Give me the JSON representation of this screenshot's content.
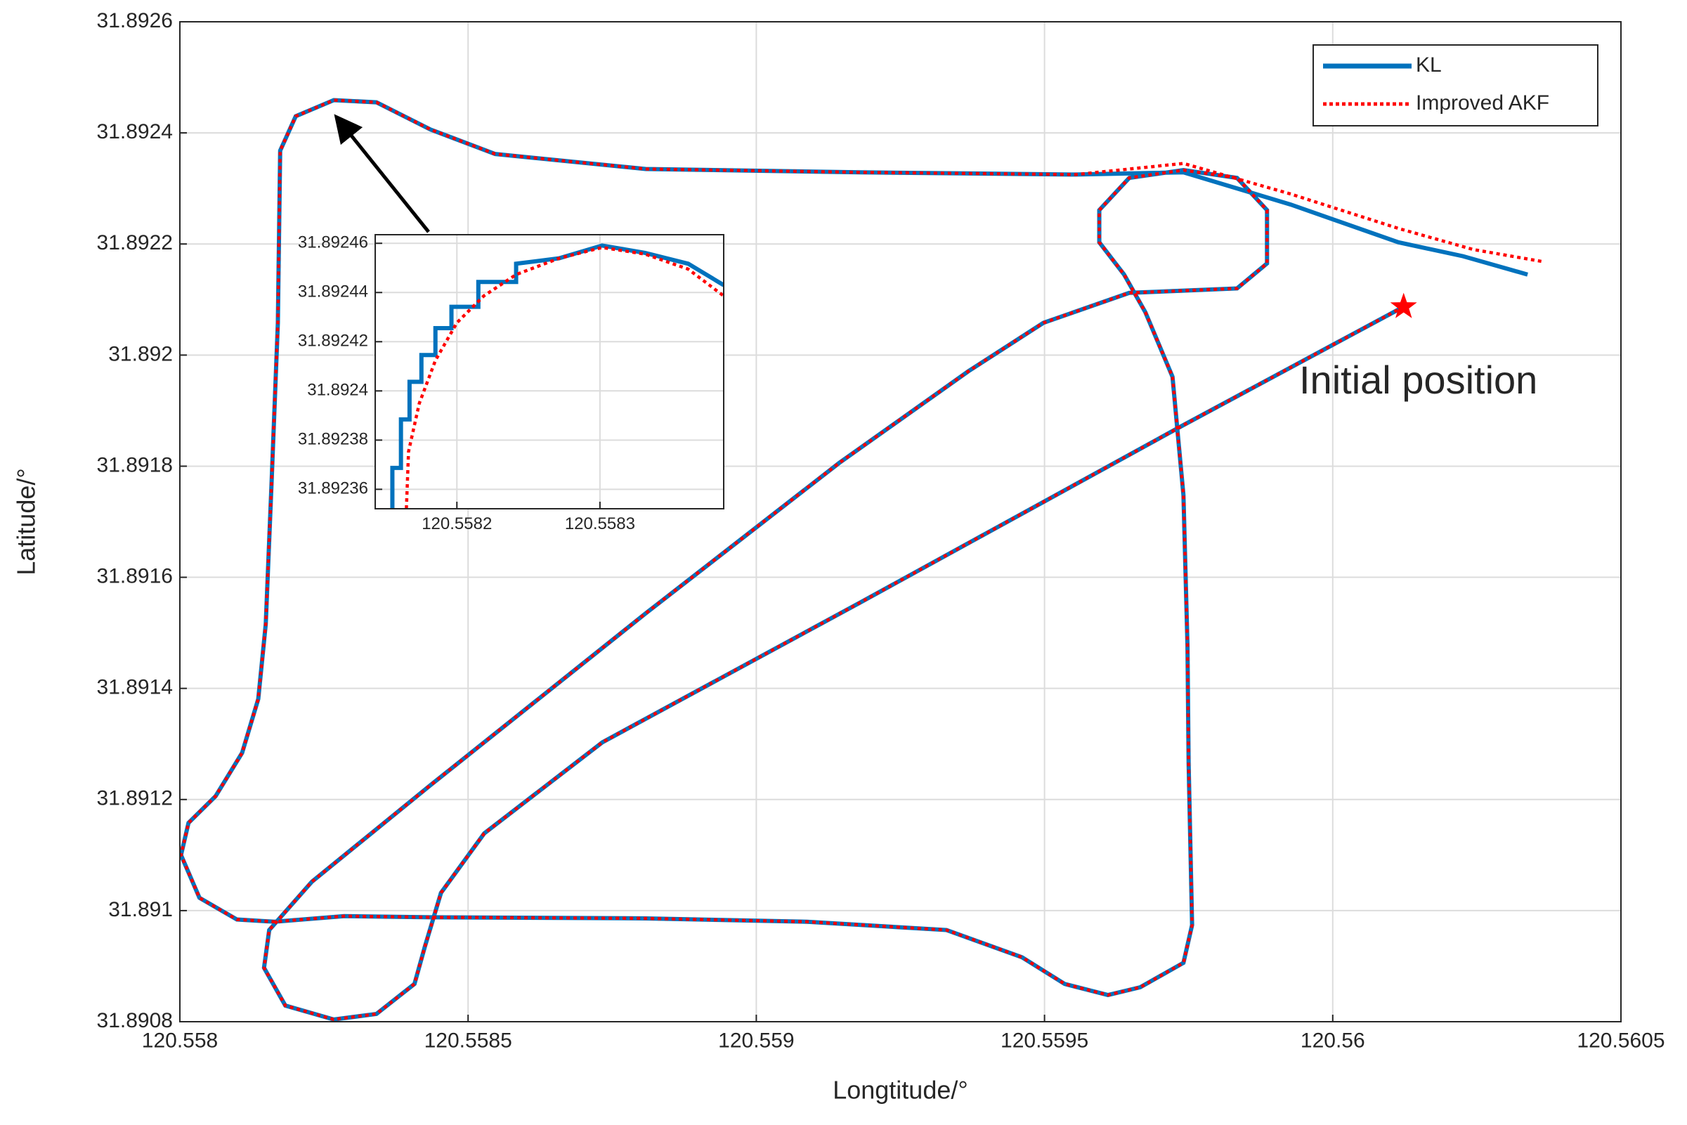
{
  "chart_data": [
    {
      "type": "line",
      "xlabel": "Longtitude/°",
      "ylabel": "Latitude/°",
      "xlim": [
        120.558,
        120.5605
      ],
      "ylim": [
        31.8908,
        31.8926
      ],
      "xticks": [
        120.558,
        120.5585,
        120.559,
        120.5595,
        120.56,
        120.5605
      ],
      "yticks": [
        31.8908,
        31.891,
        31.8912,
        31.8914,
        31.8916,
        31.8918,
        31.892,
        31.8922,
        31.8924,
        31.8926
      ],
      "grid": true,
      "legend": "upper right",
      "annotation": "Initial position",
      "start_marker": {
        "x": 120.560123,
        "y": 31.892087,
        "color": "#ff0000"
      },
      "series": [
        {
          "name": "KL",
          "color": "#0072bd",
          "style": "solid",
          "x": [
            120.560123,
            120.559741,
            120.559181,
            120.558733,
            120.558528,
            120.558453,
            120.558425,
            120.558407,
            120.558341,
            120.558267,
            120.558183,
            120.558146,
            120.558155,
            120.558229,
            120.558435,
            120.558808,
            120.559144,
            120.559368,
            120.559498,
            120.559647,
            120.559741,
            120.559834,
            120.559886,
            120.559886,
            120.559834,
            120.559741,
            120.559647,
            120.559595,
            120.559595,
            120.559638,
            120.559675,
            120.559722,
            120.559741,
            120.559748,
            120.55975,
            120.559756,
            120.559741,
            120.559666,
            120.55961,
            120.559535,
            120.559461,
            120.55933,
            120.559088,
            120.558808,
            120.558435,
            120.558285,
            120.558164,
            120.558099,
            120.558034,
            120.558002,
            120.558015,
            120.558062,
            120.558108,
            120.558136,
            120.558149,
            120.558159,
            120.55817,
            120.558174,
            120.558201,
            120.558267,
            120.558341,
            120.558435,
            120.558547,
            120.558808,
            120.559181,
            120.559554,
            120.559741,
            120.559927,
            120.560114,
            120.560226,
            120.560338
          ],
          "values": [
            31.892087,
            31.891874,
            31.891555,
            31.891303,
            31.891139,
            31.891032,
            31.890935,
            31.890868,
            31.890814,
            31.890804,
            31.890829,
            31.890897,
            31.890965,
            31.891052,
            31.891226,
            31.891535,
            31.891806,
            31.891971,
            31.892058,
            31.892112,
            31.892116,
            31.89212,
            31.892165,
            31.892261,
            31.892319,
            31.892333,
            31.892319,
            31.892261,
            31.892203,
            31.892145,
            31.892077,
            31.891961,
            31.891748,
            31.891477,
            31.891265,
            31.890974,
            31.890906,
            31.890862,
            31.890848,
            31.890868,
            31.890916,
            31.890965,
            31.89098,
            31.890986,
            31.890988,
            31.89099,
            31.89098,
            31.890984,
            31.891023,
            31.8911,
            31.891158,
            31.891206,
            31.891284,
            31.891381,
            31.891516,
            31.891768,
            31.892058,
            31.892368,
            31.89243,
            31.892459,
            31.892455,
            31.892406,
            31.892362,
            31.892335,
            31.892329,
            31.892325,
            31.892329,
            31.892271,
            31.892203,
            31.892178,
            31.892145
          ]
        },
        {
          "name": "Improved AKF",
          "color": "#ff0000",
          "style": "dotted",
          "x": [
            120.560123,
            120.559741,
            120.559181,
            120.558733,
            120.558528,
            120.558453,
            120.558425,
            120.558407,
            120.558341,
            120.558267,
            120.558183,
            120.558146,
            120.558155,
            120.558229,
            120.558435,
            120.558808,
            120.559144,
            120.559368,
            120.559498,
            120.559647,
            120.559741,
            120.559834,
            120.559886,
            120.559886,
            120.559834,
            120.559741,
            120.559647,
            120.559595,
            120.559595,
            120.559638,
            120.559675,
            120.559722,
            120.559741,
            120.559748,
            120.55975,
            120.559756,
            120.559741,
            120.559666,
            120.55961,
            120.559535,
            120.559461,
            120.55933,
            120.559088,
            120.558808,
            120.558435,
            120.558285,
            120.558164,
            120.558099,
            120.558034,
            120.558002,
            120.558015,
            120.558062,
            120.558108,
            120.558136,
            120.558149,
            120.558159,
            120.55817,
            120.558174,
            120.558201,
            120.558267,
            120.558341,
            120.558435,
            120.558547,
            120.558808,
            120.559181,
            120.559554,
            120.559741,
            120.559927,
            120.560114,
            120.560244,
            120.560366
          ],
          "values": [
            31.892087,
            31.891874,
            31.891555,
            31.891303,
            31.891139,
            31.891032,
            31.890935,
            31.890868,
            31.890814,
            31.890804,
            31.890829,
            31.890897,
            31.890965,
            31.891052,
            31.891226,
            31.891535,
            31.891806,
            31.891971,
            31.892058,
            31.892112,
            31.892116,
            31.89212,
            31.892165,
            31.892261,
            31.892319,
            31.892333,
            31.892319,
            31.892261,
            31.892203,
            31.892145,
            31.892077,
            31.891961,
            31.891748,
            31.891477,
            31.891265,
            31.890974,
            31.890906,
            31.890862,
            31.890848,
            31.890868,
            31.890916,
            31.890965,
            31.89098,
            31.890986,
            31.890988,
            31.89099,
            31.89098,
            31.890984,
            31.891023,
            31.8911,
            31.891158,
            31.891206,
            31.891284,
            31.891381,
            31.891516,
            31.891768,
            31.892058,
            31.892368,
            31.89243,
            31.892459,
            31.892455,
            31.892406,
            31.892362,
            31.892335,
            31.892329,
            31.892325,
            31.892345,
            31.89229,
            31.892228,
            31.89219,
            31.892168
          ]
        }
      ]
    },
    {
      "type": "line",
      "xlim": [
        120.5581429,
        120.5583865
      ],
      "ylim": [
        31.8923521,
        31.8924635
      ],
      "xticks": [
        120.5582,
        120.5583
      ],
      "yticks": [
        31.89246,
        31.89244,
        31.89242,
        31.8924,
        31.89238,
        31.89236
      ],
      "grid": true,
      "series": [
        {
          "color": "#0072bd",
          "style": "solid",
          "x": [
            120.5581549,
            120.5581549,
            120.5581609,
            120.5581609,
            120.5581669,
            120.5581669,
            120.5581752,
            120.5581752,
            120.558185,
            120.558185,
            120.5581962,
            120.5581962,
            120.558215,
            120.558215,
            120.5582414,
            120.5582414,
            120.5582714,
            120.5583015,
            120.5583316,
            120.5583617,
            120.5583865
          ],
          "values": [
            31.8923521,
            31.8923687,
            31.8923687,
            31.8923884,
            31.8923884,
            31.8924037,
            31.8924037,
            31.8924146,
            31.8924146,
            31.8924255,
            31.8924255,
            31.8924342,
            31.8924342,
            31.8924443,
            31.8924443,
            31.8924517,
            31.8924539,
            31.8924591,
            31.8924561,
            31.8924517,
            31.892443
          ]
        },
        {
          "color": "#ff0000",
          "style": "dotted",
          "x": [
            120.5581647,
            120.5581662,
            120.5581737,
            120.558185,
            120.5582,
            120.5582188,
            120.5582414,
            120.5582714,
            120.5583015,
            120.5583316,
            120.5583617,
            120.5583865
          ],
          "values": [
            31.8923521,
            31.8923753,
            31.8923949,
            31.8924124,
            31.8924277,
            31.8924386,
            31.8924473,
            31.8924539,
            31.8924583,
            31.8924556,
            31.8924495,
            31.8924386
          ]
        }
      ]
    }
  ]
}
